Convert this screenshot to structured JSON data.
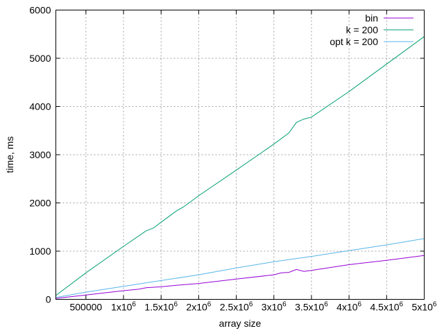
{
  "chart_data": {
    "type": "line",
    "xlabel": "array size",
    "ylabel": "time, ms",
    "xlim": [
      100000,
      5000000
    ],
    "ylim": [
      0,
      6000
    ],
    "grid": true,
    "legend_position": "top-right",
    "xticks": [
      {
        "value": 500000,
        "base": "500000",
        "sup": ""
      },
      {
        "value": 1000000,
        "base": "1x10",
        "sup": "6"
      },
      {
        "value": 1500000,
        "base": "1.5x10",
        "sup": "6"
      },
      {
        "value": 2000000,
        "base": "2x10",
        "sup": "6"
      },
      {
        "value": 2500000,
        "base": "2.5x10",
        "sup": "6"
      },
      {
        "value": 3000000,
        "base": "3x10",
        "sup": "6"
      },
      {
        "value": 3500000,
        "base": "3.5x10",
        "sup": "6"
      },
      {
        "value": 4000000,
        "base": "4x10",
        "sup": "6"
      },
      {
        "value": 4500000,
        "base": "4.5x10",
        "sup": "6"
      },
      {
        "value": 5000000,
        "base": "5x10",
        "sup": "6"
      }
    ],
    "yticks": [
      {
        "value": 0,
        "label": "0"
      },
      {
        "value": 1000,
        "label": "1000"
      },
      {
        "value": 2000,
        "label": "2000"
      },
      {
        "value": 3000,
        "label": "3000"
      },
      {
        "value": 4000,
        "label": "4000"
      },
      {
        "value": 5000,
        "label": "5000"
      },
      {
        "value": 6000,
        "label": "6000"
      }
    ],
    "series": [
      {
        "name": "bin",
        "color": "#9400d3",
        "x": [
          100000,
          500000,
          1000000,
          1200000,
          1300000,
          1500000,
          1700000,
          2000000,
          2500000,
          3000000,
          3100000,
          3200000,
          3300000,
          3400000,
          3500000,
          4000000,
          4500000,
          5000000
        ],
        "y": [
          20,
          90,
          180,
          210,
          240,
          260,
          290,
          330,
          420,
          510,
          550,
          560,
          620,
          580,
          600,
          720,
          810,
          910
        ]
      },
      {
        "name": "k = 200",
        "color": "#009e73",
        "x": [
          100000,
          500000,
          1000000,
          1300000,
          1400000,
          1500000,
          1700000,
          1800000,
          2000000,
          2500000,
          3000000,
          3200000,
          3300000,
          3400000,
          3500000,
          4000000,
          4500000,
          5000000
        ],
        "y": [
          80,
          550,
          1100,
          1420,
          1480,
          1600,
          1830,
          1920,
          2150,
          2680,
          3220,
          3450,
          3670,
          3740,
          3780,
          4310,
          4880,
          5450
        ]
      },
      {
        "name": "opt k = 200",
        "color": "#56b4e9",
        "x": [
          100000,
          500000,
          1000000,
          1500000,
          2000000,
          2500000,
          3000000,
          3500000,
          4000000,
          4500000,
          5000000
        ],
        "y": [
          40,
          150,
          270,
          390,
          510,
          650,
          780,
          890,
          1010,
          1130,
          1260
        ]
      }
    ]
  }
}
